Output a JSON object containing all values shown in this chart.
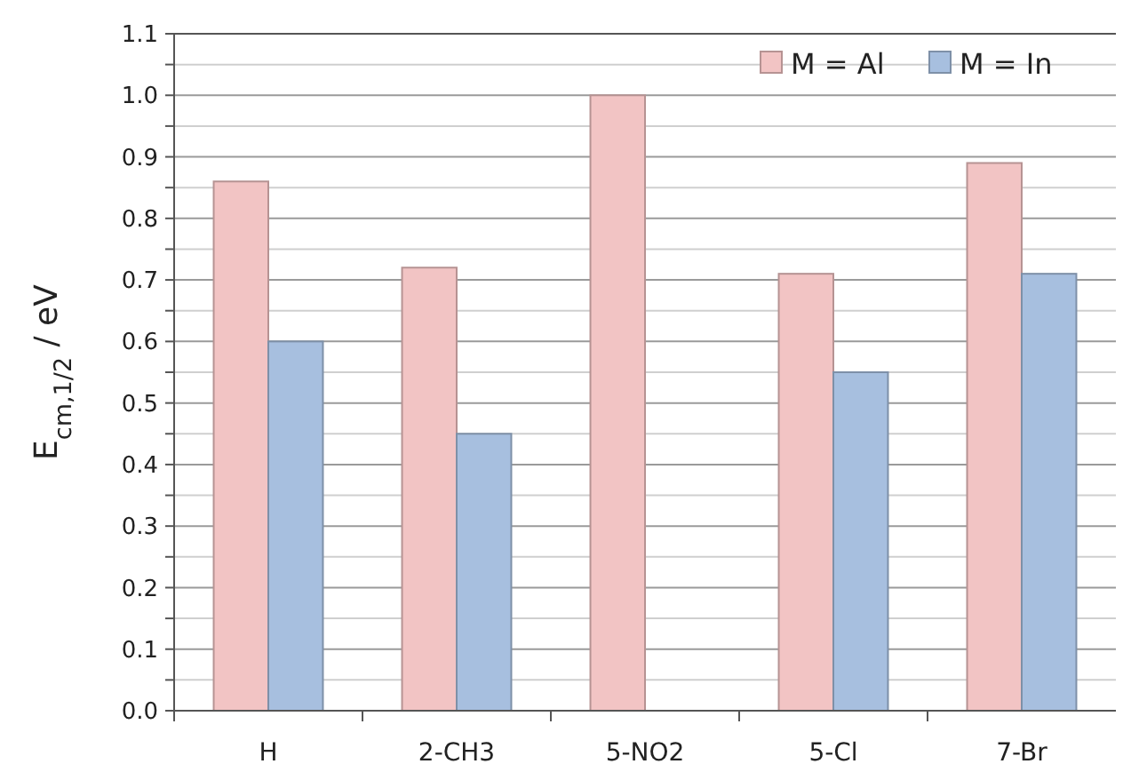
{
  "chart_data": {
    "type": "bar",
    "ylabel": "E$_{cm,1/2}$ / eV",
    "categories": [
      "H",
      "2-CH3",
      "5-NO2",
      "5-Cl",
      "7-Br"
    ],
    "series": [
      {
        "name": "M = Al",
        "color": "#f2c4c4",
        "values": [
          0.86,
          0.72,
          1.0,
          0.71,
          0.89
        ]
      },
      {
        "name": "M = In",
        "color": "#a7bfdf",
        "values": [
          0.6,
          0.45,
          null,
          0.55,
          0.71
        ]
      }
    ],
    "ylim": [
      0,
      1.1
    ],
    "yticks": [
      {
        "value": 0,
        "label": "0.0"
      },
      {
        "value": 0.05,
        "label": null
      },
      0.1,
      {
        "value": 0.15,
        "label": null
      },
      0.2,
      {
        "value": 0.25,
        "label": null
      },
      0.3,
      {
        "value": 0.35,
        "label": null
      },
      0.4,
      {
        "value": 0.45,
        "label": null
      },
      0.5,
      {
        "value": 0.55,
        "label": null
      },
      0.6,
      {
        "value": 0.65,
        "label": null
      },
      0.7,
      {
        "value": 0.75,
        "label": null
      },
      0.8,
      {
        "value": 0.85,
        "label": null
      },
      0.9,
      {
        "value": 0.95,
        "label": null
      },
      {
        "value": 1,
        "label": "1.0"
      },
      {
        "value": 1.05,
        "label": null
      },
      1.1
    ],
    "grid": "y",
    "legend": "top right"
  }
}
